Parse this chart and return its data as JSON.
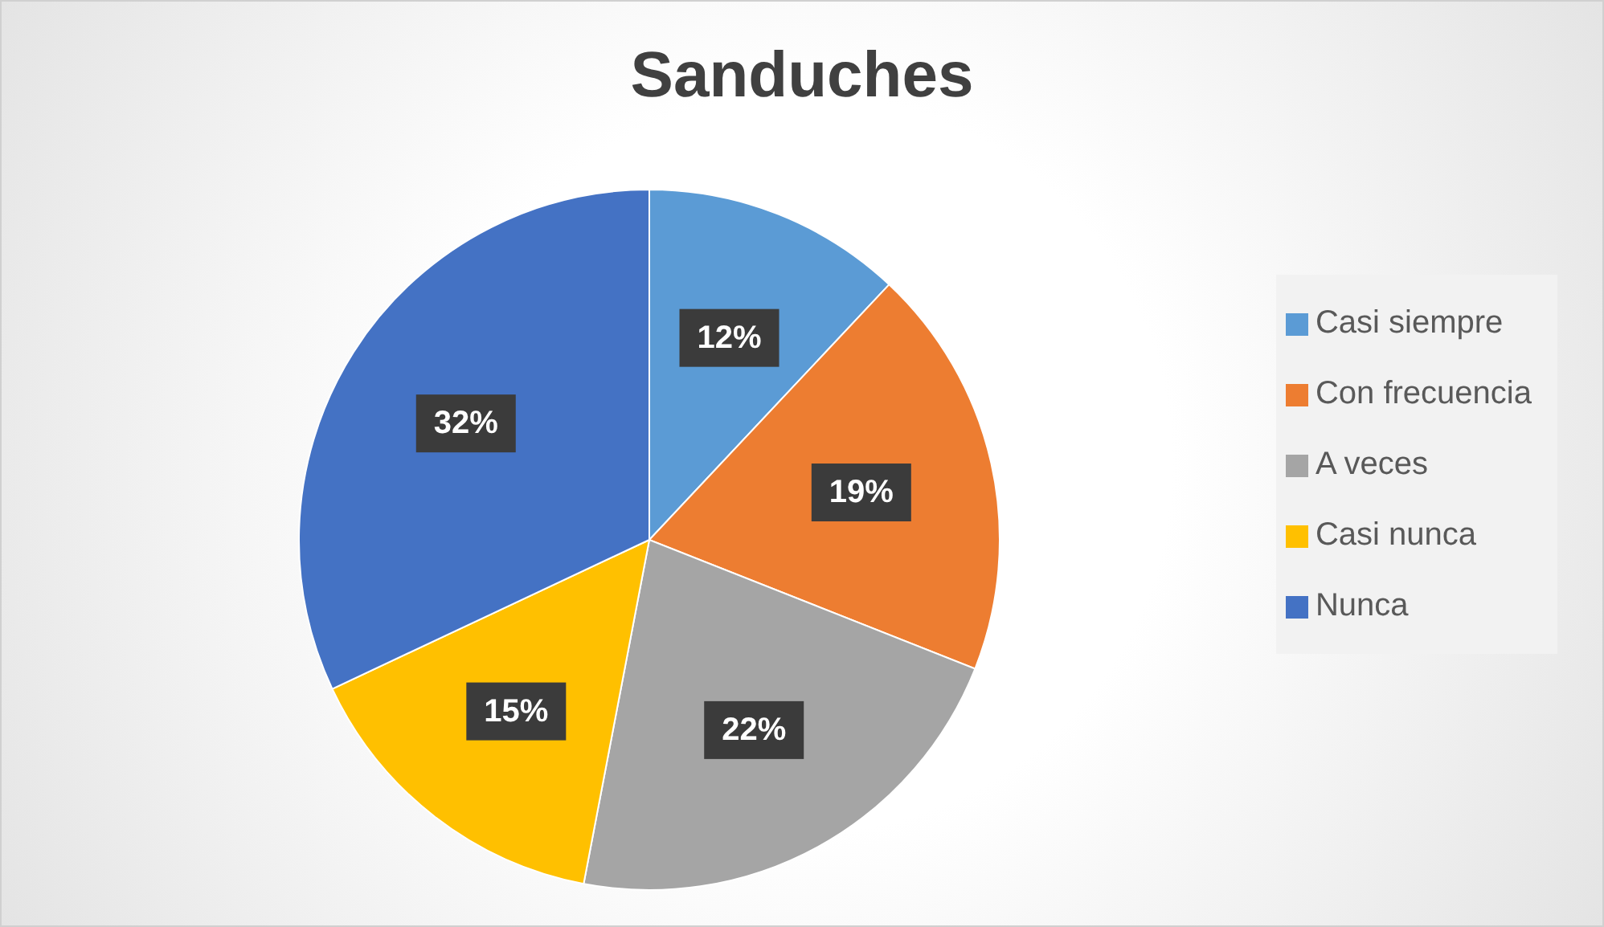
{
  "chart_data": {
    "type": "pie",
    "title": "Sanduches",
    "categories": [
      "Casi siempre",
      "Con frecuencia",
      "A veces",
      "Casi nunca",
      "Nunca"
    ],
    "values": [
      12,
      19,
      22,
      15,
      32
    ],
    "colors": [
      "#5b9bd5",
      "#ed7d31",
      "#a5a5a5",
      "#ffc000",
      "#4472c4"
    ],
    "value_labels": [
      "12%",
      "19%",
      "22%",
      "15%",
      "32%"
    ],
    "legend": "right"
  }
}
